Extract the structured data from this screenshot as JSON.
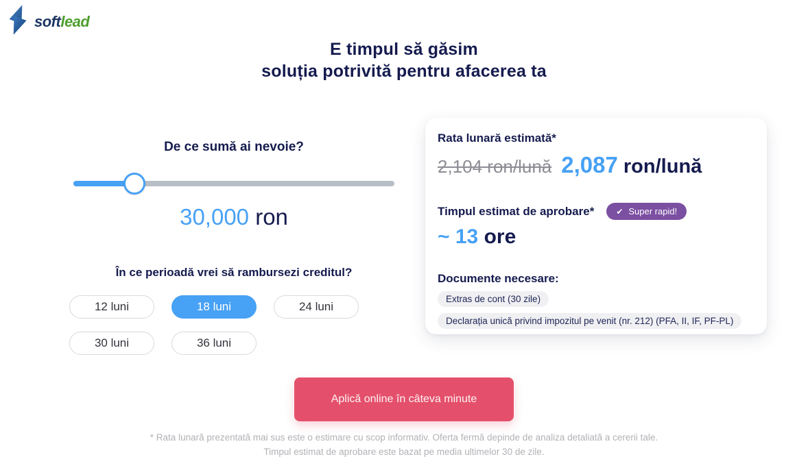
{
  "logo": {
    "soft": "soft",
    "lead": "lead"
  },
  "heading": {
    "line1": "E timpul să găsim",
    "line2": "soluția potrivită pentru afacerea ta"
  },
  "loan": {
    "amount_question": "De ce sumă ai nevoie?",
    "amount_value": "30,000",
    "amount_currency": " ron",
    "slider_percent": 19,
    "period_question": "În ce perioadă vrei să rambursezi creditul?",
    "period_options": [
      {
        "label": "12 luni",
        "selected": false
      },
      {
        "label": "18 luni",
        "selected": true
      },
      {
        "label": "24 luni",
        "selected": false
      },
      {
        "label": "30 luni",
        "selected": false
      },
      {
        "label": "36 luni",
        "selected": false
      }
    ]
  },
  "results": {
    "rate_title": "Rata lunară estimată*",
    "rate_old": "2,104 ron/lună",
    "rate_new_value": "2,087",
    "rate_new_unit": " ron/lună",
    "approval_title": "Timpul estimat de aprobare*",
    "approval_badge": "Super rapid!",
    "approval_value": "~ 13",
    "approval_unit": " ore",
    "documents_title": "Documente necesare:",
    "documents": [
      "Extras de cont (30 zile)",
      "Declarația unică privind impozitul pe venit (nr. 212) (PFA, II, IF, PF-PL)"
    ]
  },
  "cta": {
    "label": "Aplică online în câteva minute"
  },
  "footnote": {
    "line1": "* Rata lunară prezentată mai sus este o estimare cu scop informativ. Oferta fermă depinde de analiza detaliată a cererii tale.",
    "line2": "Timpul estimat de aprobare este bazat pe media ultimelor 30 de zile."
  },
  "colors": {
    "accent_blue": "#47a1f4",
    "navy": "#151b4e",
    "badge_purple": "#7b4fa1",
    "cta_red": "#e4506b",
    "strike_gray": "#8d8d95",
    "logo_green": "#4d9f2e",
    "logo_navy": "#1c3664"
  }
}
